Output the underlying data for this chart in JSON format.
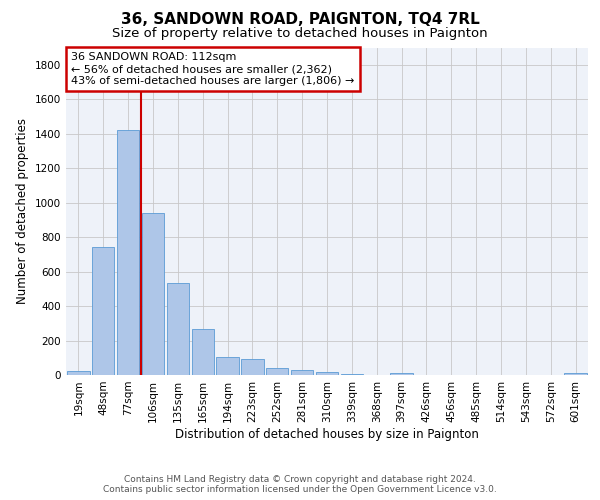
{
  "title": "36, SANDOWN ROAD, PAIGNTON, TQ4 7RL",
  "subtitle": "Size of property relative to detached houses in Paignton",
  "xlabel": "Distribution of detached houses by size in Paignton",
  "ylabel": "Number of detached properties",
  "footer_line1": "Contains HM Land Registry data © Crown copyright and database right 2024.",
  "footer_line2": "Contains public sector information licensed under the Open Government Licence v3.0.",
  "bin_labels": [
    "19sqm",
    "48sqm",
    "77sqm",
    "106sqm",
    "135sqm",
    "165sqm",
    "194sqm",
    "223sqm",
    "252sqm",
    "281sqm",
    "310sqm",
    "339sqm",
    "368sqm",
    "397sqm",
    "426sqm",
    "456sqm",
    "485sqm",
    "514sqm",
    "543sqm",
    "572sqm",
    "601sqm"
  ],
  "bar_values": [
    22,
    745,
    1421,
    938,
    533,
    268,
    105,
    93,
    38,
    28,
    20,
    5,
    0,
    14,
    0,
    0,
    0,
    0,
    0,
    0,
    14
  ],
  "bar_color": "#aec6e8",
  "bar_edgecolor": "#5b9bd5",
  "grid_color": "#c8c8c8",
  "background_color": "#ffffff",
  "plot_bg_color": "#eef2f9",
  "vline_x": 2.5,
  "vline_color": "#cc0000",
  "annotation_text_line1": "36 SANDOWN ROAD: 112sqm",
  "annotation_text_line2": "← 56% of detached houses are smaller (2,362)",
  "annotation_text_line3": "43% of semi-detached houses are larger (1,806) →",
  "annotation_box_color": "#cc0000",
  "ylim": [
    0,
    1900
  ],
  "yticks": [
    0,
    200,
    400,
    600,
    800,
    1000,
    1200,
    1400,
    1600,
    1800
  ],
  "title_fontsize": 11,
  "subtitle_fontsize": 9.5,
  "axis_label_fontsize": 8.5,
  "tick_fontsize": 7.5,
  "annotation_fontsize": 8,
  "footer_fontsize": 6.5
}
